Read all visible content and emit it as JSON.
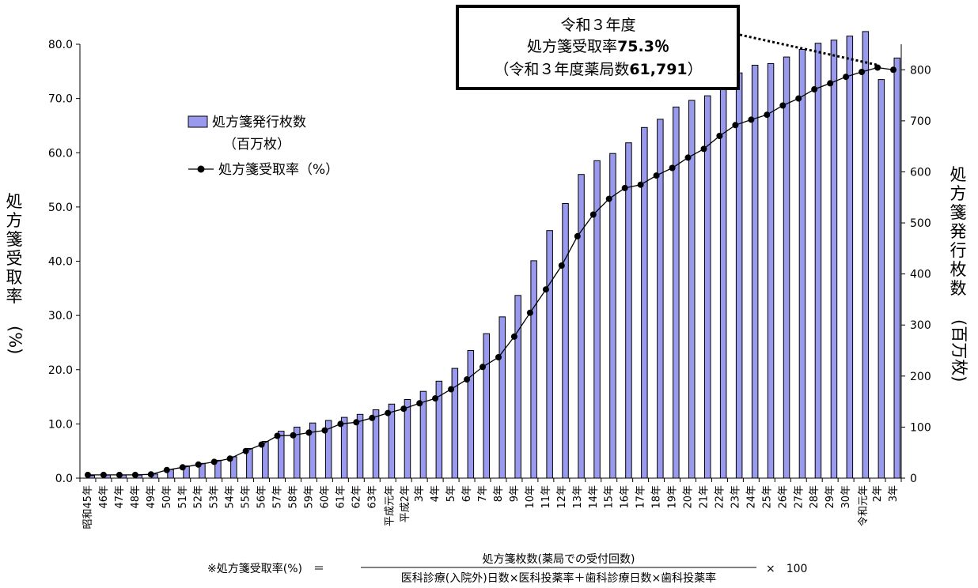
{
  "chart_data": {
    "type": "bar+line",
    "categories": [
      "昭和45年",
      "46年",
      "47年",
      "48年",
      "49年",
      "50年",
      "51年",
      "52年",
      "53年",
      "54年",
      "55年",
      "56年",
      "57年",
      "58年",
      "59年",
      "60年",
      "61年",
      "62年",
      "63年",
      "平成元年",
      "平成2年",
      "3年",
      "4年",
      "5年",
      "6年",
      "7年",
      "8年",
      "9年",
      "10年",
      "11年",
      "12年",
      "13年",
      "14年",
      "15年",
      "16年",
      "17年",
      "18年",
      "19年",
      "20年",
      "21年",
      "22年",
      "23年",
      "24年",
      "25年",
      "26年",
      "27年",
      "28年",
      "29年",
      "30年",
      "令和元年",
      "2年",
      "3年"
    ],
    "series": [
      {
        "name": "処方箋発行枚数",
        "name_sub": "（百万枚）",
        "axis": "right",
        "kind": "bar",
        "values": [
          5,
          6,
          6,
          6,
          8,
          17,
          24,
          29,
          35,
          42,
          58,
          72,
          92,
          100,
          108,
          113,
          119,
          125,
          134,
          145,
          154,
          170,
          190,
          215,
          250,
          283,
          316,
          358,
          426,
          485,
          538,
          595,
          622,
          636,
          657,
          687,
          703,
          727,
          740,
          749,
          777,
          794,
          809,
          812,
          825,
          840,
          852,
          858,
          866,
          875,
          781,
          823
        ]
      },
      {
        "name": "処方箋受取率（%）",
        "axis": "left",
        "kind": "line",
        "values": [
          0.6,
          0.6,
          0.6,
          0.6,
          0.7,
          1.5,
          2.0,
          2.5,
          3.0,
          3.6,
          5.0,
          6.2,
          7.8,
          7.9,
          8.4,
          8.8,
          10.0,
          10.3,
          11.1,
          12.0,
          12.8,
          13.8,
          14.7,
          16.4,
          18.2,
          20.5,
          22.3,
          26.1,
          30.5,
          34.8,
          39.2,
          44.6,
          48.6,
          51.5,
          53.5,
          54.1,
          55.8,
          57.2,
          59.1,
          60.7,
          63.1,
          65.1,
          66.1,
          67.0,
          68.7,
          70.0,
          71.7,
          72.8,
          74.0,
          74.9,
          75.7,
          75.3
        ]
      }
    ],
    "y_left": {
      "label_chars": [
        "処",
        "方",
        "箋",
        "受",
        "取",
        "率"
      ],
      "label_unit": "(%)",
      "ylim": [
        0,
        80
      ],
      "ticks": [
        "0.0",
        "10.0",
        "20.0",
        "30.0",
        "40.0",
        "50.0",
        "60.0",
        "70.0",
        "80.0"
      ]
    },
    "y_right": {
      "label_chars": [
        "処",
        "方",
        "箋",
        "発",
        "行",
        "枚",
        "数"
      ],
      "label_unit": "(百万枚)",
      "ylim": [
        0,
        850
      ],
      "ticks": [
        "0",
        "100",
        "200",
        "300",
        "400",
        "500",
        "600",
        "700",
        "800"
      ]
    },
    "legend_placement": "top-left",
    "grid": false,
    "colors": {
      "bar_fill": "#9999ee",
      "bar_stroke": "#000000",
      "line": "#000000",
      "marker": "#000000"
    },
    "callout": {
      "line1": "令和３年度",
      "line2_prefix": "処方箋受取率",
      "line2_value": "75.3％",
      "line3_prefix": "（令和３年度薬局数",
      "line3_value": "61,791",
      "line3_suffix": "）"
    },
    "formula": {
      "prefix": "※処方箋受取率(%)　＝",
      "numerator": "処方箋枚数(薬局での受付回数)",
      "denominator": "医科診療(入院外)日数×医科投薬率＋歯科診療日数×歯科投薬率",
      "suffix": "×　100"
    }
  }
}
